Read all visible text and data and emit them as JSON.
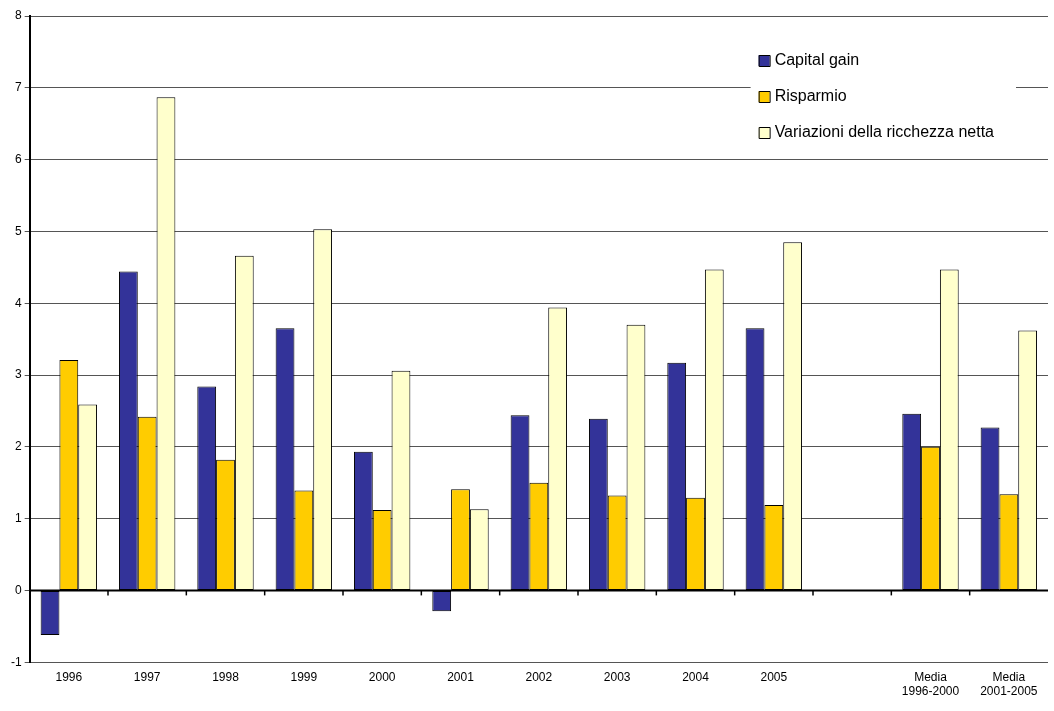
{
  "chart_data": {
    "type": "bar",
    "categories": [
      "1996",
      "1997",
      "1998",
      "1999",
      "2000",
      "2001",
      "2002",
      "2003",
      "2004",
      "2005",
      null,
      "Media 1996-2000",
      "Media 2001-2005"
    ],
    "series": [
      {
        "name": "Capital gain",
        "color": "#333399",
        "values": [
          -0.62,
          4.44,
          2.84,
          3.65,
          1.93,
          -0.29,
          2.44,
          2.39,
          3.17,
          3.65,
          null,
          2.46,
          2.27
        ]
      },
      {
        "name": "Risparmio",
        "color": "#ffcc00",
        "values": [
          3.21,
          2.42,
          1.82,
          1.39,
          1.12,
          1.41,
          1.5,
          1.32,
          1.29,
          1.19,
          null,
          2.0,
          1.34
        ]
      },
      {
        "name": "Variazioni della ricchezza netta",
        "color": "#ffffcc",
        "values": [
          2.59,
          6.87,
          4.66,
          5.03,
          3.06,
          1.13,
          3.94,
          3.7,
          4.47,
          4.85,
          null,
          4.47,
          3.62
        ]
      }
    ],
    "ylim": [
      -1,
      8
    ],
    "yticks": [
      -1,
      0,
      1,
      2,
      3,
      4,
      5,
      6,
      7,
      8
    ],
    "grid": "y",
    "legend": "top right"
  }
}
